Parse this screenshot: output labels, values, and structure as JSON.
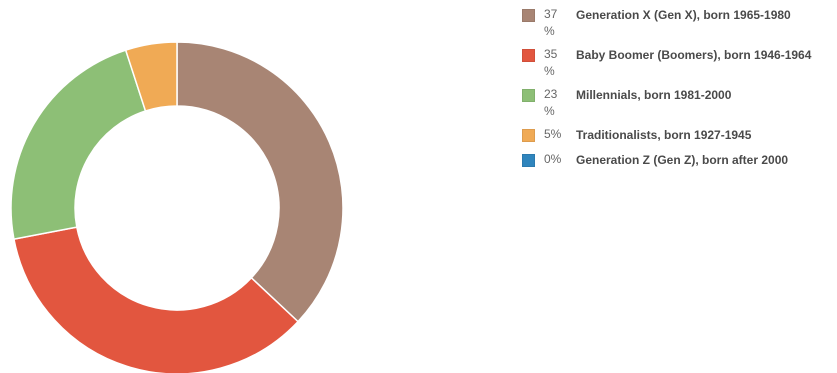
{
  "chart_data": {
    "type": "pie",
    "series": [
      {
        "name": "Generation X (Gen X), born 1965-1980",
        "value": 37,
        "value_label": "37 %",
        "color": "#a88574"
      },
      {
        "name": "Baby Boomer (Boomers), born 1946-1964",
        "value": 35,
        "value_label": "35 %",
        "color": "#e2563f"
      },
      {
        "name": "Millennials, born 1981-2000",
        "value": 23,
        "value_label": "23 %",
        "color": "#8dbf76"
      },
      {
        "name": "Traditionalists, born 1927-1945",
        "value": 5,
        "value_label": "5%",
        "color": "#f0aa55"
      },
      {
        "name": "Generation Z (Gen Z), born after 2000",
        "value": 0,
        "value_label": "0%",
        "color": "#2f85bd"
      }
    ],
    "legend_position": "right",
    "donut": true
  }
}
